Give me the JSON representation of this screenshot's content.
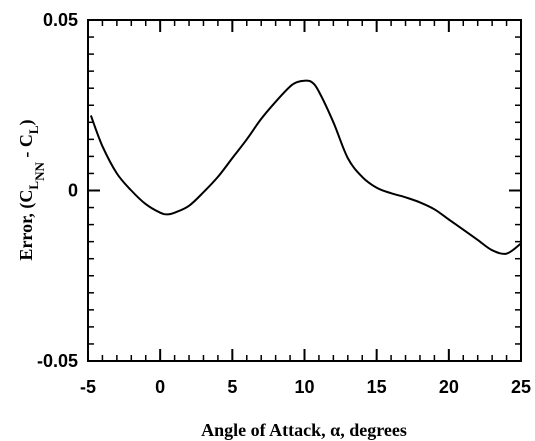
{
  "chart_data": {
    "type": "line",
    "xlabel": "Angle of Attack, α, degrees",
    "ylabel": {
      "prefix": "Error, (C",
      "sub1": "L",
      "sub2": "NN",
      "middle": " - C",
      "sub3": "L",
      "suffix": ")"
    },
    "xlim": [
      -5,
      25
    ],
    "ylim": [
      -0.05,
      0.05
    ],
    "x_ticks": [
      -5,
      0,
      5,
      10,
      15,
      20,
      25
    ],
    "x_tick_labels": [
      "-5",
      "0",
      "5",
      "10",
      "15",
      "20",
      "25"
    ],
    "y_ticks": [
      -0.05,
      0,
      0.05
    ],
    "y_tick_labels": [
      "-0.05",
      "0",
      "0.05"
    ],
    "grid": false,
    "series": [
      {
        "x": [
          -4.8,
          -4,
          -3,
          -2,
          -1,
          0,
          0.5,
          1,
          2,
          3,
          4,
          5,
          6,
          7,
          8,
          9,
          9.5,
          10,
          10.5,
          11,
          12,
          13,
          14,
          15,
          16,
          17,
          18,
          19,
          20,
          21,
          22,
          23,
          24,
          25
        ],
        "y": [
          0.022,
          0.013,
          0.005,
          0.0,
          -0.004,
          -0.0065,
          -0.007,
          -0.0065,
          -0.0045,
          -0.0005,
          0.004,
          0.0095,
          0.015,
          0.021,
          0.026,
          0.0305,
          0.0318,
          0.0322,
          0.0318,
          0.029,
          0.02,
          0.0095,
          0.004,
          0.0008,
          -0.0008,
          -0.002,
          -0.0035,
          -0.0055,
          -0.0085,
          -0.0115,
          -0.0145,
          -0.0175,
          -0.0185,
          -0.0155
        ]
      }
    ]
  }
}
